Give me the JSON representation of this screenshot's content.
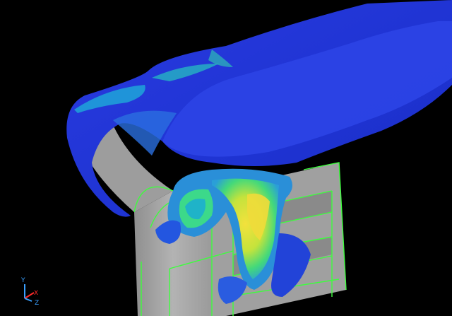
{
  "viewport": {
    "background": "#000000",
    "scene": "3d-cfd-flow-visualization",
    "colormap": [
      "#1a2fd6",
      "#1f7fe0",
      "#29c7c0",
      "#3ee07a",
      "#b8e23a",
      "#f0d83a"
    ],
    "mesh_outline_color": "#3cff3c",
    "solid_color": "#a9a9a9"
  },
  "axis_triad": {
    "x_label": "X",
    "y_label": "Y",
    "z_label": "Z",
    "x_color": "#ff2a2a",
    "y_color": "#3aa0ff",
    "z_color": "#3aa0ff"
  }
}
